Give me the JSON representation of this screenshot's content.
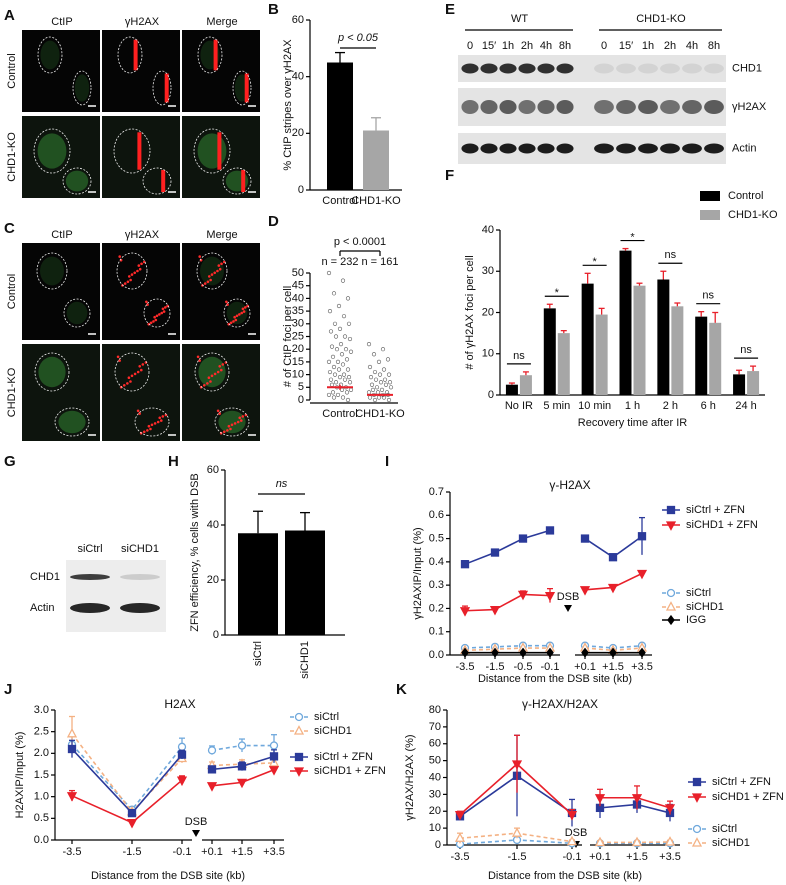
{
  "panels": {
    "A": {
      "label": "A",
      "columns": [
        "CtIP",
        "γH2AX",
        "Merge"
      ],
      "rows": [
        "Control",
        "CHD1-KO"
      ]
    },
    "C": {
      "label": "C",
      "columns": [
        "CtIP",
        "γH2AX",
        "Merge"
      ],
      "rows": [
        "Control",
        "CHD1-KO"
      ]
    },
    "E": {
      "label": "E",
      "groups": [
        "WT",
        "CHD1-KO"
      ],
      "times": [
        "0",
        "15′",
        "1h",
        "2h",
        "4h",
        "8h"
      ],
      "bands": [
        "CHD1",
        "γH2AX",
        "Actin"
      ]
    },
    "G": {
      "label": "G",
      "lanes": [
        "siCtrl",
        "siCHD1"
      ],
      "bands": [
        "CHD1",
        "Actin"
      ]
    }
  },
  "chart_data": [
    {
      "panel": "B",
      "type": "bar",
      "y_label": "% CtIP stripes over γH2AX",
      "categories": [
        "Control",
        "CHD1-KO"
      ],
      "values": [
        45,
        21
      ],
      "errors": [
        3.5,
        4.5
      ],
      "colors": [
        "#000000",
        "#a6a6a6"
      ],
      "ylim": [
        0,
        60
      ],
      "yticks": [
        0,
        20,
        40,
        60
      ],
      "annotation": "p < 0.05"
    },
    {
      "panel": "D",
      "type": "strip",
      "y_label": "# of CtIP foci per cell",
      "categories": [
        "Control",
        "CHD1-KO"
      ],
      "groups": [
        [
          50,
          47,
          42,
          40,
          37,
          35,
          33,
          30,
          30,
          28,
          27,
          25,
          25,
          24,
          22,
          21,
          20,
          20,
          19,
          18,
          17,
          16,
          15,
          15,
          14,
          13,
          12,
          12,
          11,
          10,
          10,
          9,
          9,
          8,
          8,
          7,
          7,
          6,
          6,
          5,
          5,
          4,
          4,
          3,
          3,
          2,
          2,
          1,
          1,
          0
        ],
        [
          22,
          20,
          18,
          16,
          15,
          13,
          12,
          11,
          10,
          10,
          9,
          8,
          8,
          7,
          7,
          6,
          6,
          5,
          5,
          4,
          4,
          3,
          3,
          3,
          2,
          2,
          2,
          1,
          1,
          1,
          0,
          0
        ]
      ],
      "means": [
        5,
        2
      ],
      "errors": [
        1,
        0.5
      ],
      "mean_color": "#e8202a",
      "n_labels": [
        "n = 232",
        "n = 161"
      ],
      "annotation": "p < 0.0001",
      "ylim": [
        0,
        50
      ],
      "yticks": [
        0,
        5,
        10,
        15,
        20,
        25,
        30,
        35,
        40,
        45,
        50
      ]
    },
    {
      "panel": "F",
      "type": "grouped_bar",
      "x_label": "Recovery time after IR",
      "y_label": "# of γH2AX foci per cell",
      "categories": [
        "No IR",
        "5 min",
        "10 min",
        "1 h",
        "2 h",
        "6 h",
        "24 h"
      ],
      "series": [
        {
          "name": "Control",
          "color": "#000000",
          "values": [
            2.5,
            21,
            27,
            35,
            28,
            19,
            5
          ],
          "errors": [
            0.4,
            1,
            2.5,
            0.5,
            2,
            1.2,
            1
          ]
        },
        {
          "name": "CHD1-KO",
          "color": "#a6a6a6",
          "values": [
            4.8,
            15,
            19.5,
            26.5,
            21.5,
            17.5,
            5.8
          ],
          "errors": [
            0.8,
            0.6,
            1.5,
            0.6,
            0.8,
            2.5,
            1.2
          ]
        }
      ],
      "error_color": "#e8202a",
      "significance": [
        "ns",
        "*",
        "*",
        "*",
        "ns",
        "ns",
        "ns"
      ],
      "ylim": [
        0,
        40
      ],
      "yticks": [
        0,
        10,
        20,
        30,
        40
      ]
    },
    {
      "panel": "H",
      "type": "bar",
      "y_label": "ZFN efficiency, % cells with DSB",
      "categories": [
        "siCtrl",
        "siCHD1"
      ],
      "values": [
        37,
        38
      ],
      "errors": [
        8,
        6.5
      ],
      "color": "#000000",
      "ylim": [
        0,
        60
      ],
      "yticks": [
        0,
        20,
        40,
        60
      ],
      "annotation": "ns"
    },
    {
      "panel": "I",
      "type": "line",
      "title": "γ-H2AX",
      "x_label": "Distance from the DSB site (kb)",
      "y_label": "γH2AXIP/Input (%)",
      "annotation": "DSB",
      "categories": [
        "-3.5",
        "-1.5",
        "-0.5",
        "-0.1",
        null,
        "+0.1",
        "+1.5",
        "+3.5"
      ],
      "series": [
        {
          "name": "siCtrl + ZFN",
          "color": "#2b3a9a",
          "marker": "square",
          "filled": true,
          "dashed": false,
          "values": [
            0.39,
            0.44,
            0.5,
            0.535,
            null,
            0.5,
            0.42,
            0.51
          ],
          "errors": [
            0.015,
            0.01,
            0.01,
            0.01,
            null,
            0.01,
            0.01,
            0.08
          ]
        },
        {
          "name": "siCHD1 + ZFN",
          "color": "#e8202a",
          "marker": "triangle-down",
          "filled": true,
          "dashed": false,
          "values": [
            0.19,
            0.195,
            0.26,
            0.255,
            null,
            0.28,
            0.29,
            0.35
          ],
          "errors": [
            0.02,
            0.005,
            0.015,
            0.03,
            null,
            0.005,
            0.005,
            0.01
          ]
        },
        {
          "name": "siCtrl",
          "color": "#6fa8dc",
          "marker": "circle",
          "filled": false,
          "dashed": true,
          "values": [
            0.03,
            0.035,
            0.04,
            0.04,
            null,
            0.04,
            0.03,
            0.04
          ]
        },
        {
          "name": "siCHD1",
          "color": "#f4b183",
          "marker": "triangle",
          "filled": false,
          "dashed": true,
          "values": [
            0.02,
            0.025,
            0.03,
            0.03,
            null,
            0.03,
            0.02,
            0.03
          ]
        },
        {
          "name": "IGG",
          "color": "#000000",
          "marker": "diamond",
          "filled": true,
          "dashed": false,
          "values": [
            0.01,
            0.01,
            0.01,
            0.01,
            null,
            0.01,
            0.01,
            0.01
          ]
        }
      ],
      "ylim": [
        0,
        0.7
      ],
      "yticks": [
        {
          "value": 0,
          "label": "0.0"
        },
        0.1,
        0.2,
        0.3,
        0.4,
        0.5,
        0.6,
        0.7
      ]
    },
    {
      "panel": "J",
      "type": "line",
      "title": "H2AX",
      "x_label": "Distance from the DSB site (kb)",
      "y_label": "H2AXIP/Input (%)",
      "annotation": "DSB",
      "categories": [
        "-3.5",
        "-1.5",
        "-0.1",
        null,
        "+0.1",
        "+1.5",
        "+3.5"
      ],
      "series": [
        {
          "name": "siCtrl",
          "color": "#6fa8dc",
          "marker": "circle",
          "filled": false,
          "dashed": true,
          "values": [
            2.2,
            0.7,
            2.15,
            null,
            2.07,
            2.18,
            2.18
          ],
          "errors": [
            0.2,
            0.05,
            0.2,
            null,
            0.1,
            0.15,
            0.25
          ]
        },
        {
          "name": "siCHD1",
          "color": "#f4b183",
          "marker": "triangle",
          "filled": false,
          "dashed": true,
          "values": [
            2.45,
            0.65,
            1.88,
            null,
            1.72,
            1.75,
            1.78
          ],
          "errors": [
            0.4,
            0.05,
            0.1,
            null,
            0.08,
            0.1,
            0.1
          ]
        },
        {
          "name": "siCtrl + ZFN",
          "color": "#2b3a9a",
          "marker": "square",
          "filled": true,
          "dashed": false,
          "values": [
            2.1,
            0.62,
            1.97,
            null,
            1.63,
            1.7,
            1.93
          ],
          "errors": [
            0.2,
            0.05,
            0.1,
            null,
            0.05,
            0.1,
            0.15
          ]
        },
        {
          "name": "siCHD1 + ZFN",
          "color": "#e8202a",
          "marker": "triangle-down",
          "filled": true,
          "dashed": false,
          "values": [
            1.02,
            0.4,
            1.38,
            null,
            1.25,
            1.33,
            1.62
          ],
          "errors": [
            0.12,
            0.03,
            0.1,
            null,
            0.05,
            0.03,
            0.03
          ]
        }
      ],
      "ylim": [
        0,
        3
      ],
      "yticks": [
        {
          "value": 0,
          "label": "0.0"
        },
        0.5,
        {
          "value": 1,
          "label": "1.0"
        },
        1.5,
        {
          "value": 2,
          "label": "2.0"
        },
        2.5,
        {
          "value": 3,
          "label": "3.0"
        }
      ]
    },
    {
      "panel": "K",
      "type": "line",
      "title": "γ-H2AX/H2AX",
      "x_label": "Distance from the DSB site (kb)",
      "y_label": "γH2AX/H2AX (%)",
      "annotation": "DSB",
      "categories": [
        "-3.5",
        "-1.5",
        "-0.1",
        null,
        "+0.1",
        "+1.5",
        "+3.5"
      ],
      "series": [
        {
          "name": "siCtrl + ZFN",
          "color": "#2b3a9a",
          "marker": "square",
          "filled": true,
          "dashed": false,
          "values": [
            17,
            41,
            19,
            null,
            22,
            24,
            19
          ],
          "errors": [
            2,
            24,
            8,
            null,
            6,
            5,
            5
          ]
        },
        {
          "name": "siCHD1 + ZFN",
          "color": "#e8202a",
          "marker": "triangle-down",
          "filled": true,
          "dashed": false,
          "values": [
            18,
            48,
            18,
            null,
            28,
            28,
            22
          ],
          "errors": [
            2,
            17,
            3,
            null,
            5,
            7,
            4
          ]
        },
        {
          "name": "siCtrl",
          "color": "#6fa8dc",
          "marker": "circle",
          "filled": false,
          "dashed": true,
          "values": [
            0.5,
            3,
            1,
            null,
            1,
            1,
            1
          ]
        },
        {
          "name": "siCHD1",
          "color": "#f4b183",
          "marker": "triangle",
          "filled": false,
          "dashed": true,
          "values": [
            4,
            7,
            2,
            null,
            1.5,
            1.5,
            1.8
          ],
          "errors": [
            3,
            3,
            1,
            null,
            1,
            1,
            1
          ]
        }
      ],
      "ylim": [
        0,
        80
      ],
      "yticks": [
        0,
        10,
        20,
        30,
        40,
        50,
        60,
        70,
        80
      ]
    }
  ]
}
